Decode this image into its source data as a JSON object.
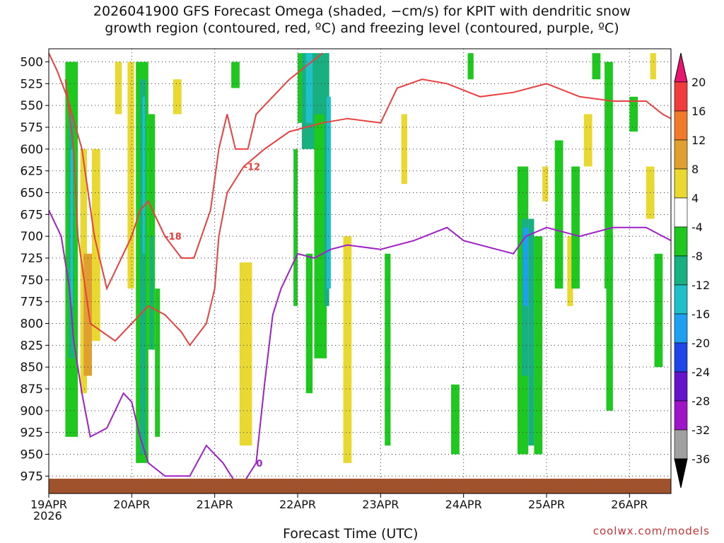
{
  "title_lines": [
    "2026041900 GFS Forecast Omega (shaded, −cm/s) for KPIT with dendritic snow",
    "growth region (contoured, red, ºC) and freezing level (contoured, purple, ºC)"
  ],
  "credit": "coolwx.com/models",
  "chart_data": {
    "type": "time-height",
    "title": "2026041900 GFS Forecast Omega (shaded, −cm/s) for KPIT with dendritic snow growth region (contoured, red, ºC) and freezing level (contoured, purple, ºC)",
    "xlabel": "Forecast Time (UTC)",
    "x_year_label": "2026",
    "x_ticks": [
      "19APR",
      "20APR",
      "21APR",
      "22APR",
      "23APR",
      "24APR",
      "25APR",
      "26APR"
    ],
    "xlim_days": [
      0,
      7.5
    ],
    "y_ticks": [
      500,
      525,
      550,
      575,
      600,
      625,
      650,
      675,
      700,
      725,
      750,
      775,
      800,
      825,
      850,
      875,
      900,
      925,
      950,
      975
    ],
    "ylim_hpa": [
      485,
      995
    ],
    "y_reversed": true,
    "grid": true,
    "colorbar": {
      "labels": [
        20,
        16,
        12,
        8,
        4,
        -4,
        -8,
        -12,
        -16,
        -20,
        -24,
        -28,
        -32,
        -36
      ],
      "colors": [
        "#e81470",
        "#f03c3c",
        "#f07a2a",
        "#e0a030",
        "#e8d830",
        "#ffffff",
        "#1ec81e",
        "#18b080",
        "#20c0c8",
        "#1ea0f0",
        "#1e46e6",
        "#6414c8",
        "#a014c8",
        "#a0a0a0",
        "#000000"
      ]
    },
    "omega_cells": [
      {
        "x": [
          0.2,
          0.35
        ],
        "y": [
          500,
          930
        ],
        "v": -8
      },
      {
        "x": [
          0.24,
          0.3
        ],
        "y": [
          560,
          840
        ],
        "v": -12
      },
      {
        "x": [
          0.26,
          0.29
        ],
        "y": [
          600,
          780
        ],
        "v": -16
      },
      {
        "x": [
          0.38,
          0.46
        ],
        "y": [
          600,
          880
        ],
        "v": 4
      },
      {
        "x": [
          0.42,
          0.52
        ],
        "y": [
          720,
          860
        ],
        "v": 8
      },
      {
        "x": [
          0.52,
          0.62
        ],
        "y": [
          600,
          820
        ],
        "v": 4
      },
      {
        "x": [
          1.05,
          1.2
        ],
        "y": [
          500,
          960
        ],
        "v": -8
      },
      {
        "x": [
          1.1,
          1.17
        ],
        "y": [
          520,
          950
        ],
        "v": -12
      },
      {
        "x": [
          1.13,
          1.16
        ],
        "y": [
          540,
          720
        ],
        "v": -16
      },
      {
        "x": [
          1.2,
          1.28
        ],
        "y": [
          560,
          830
        ],
        "v": -8
      },
      {
        "x": [
          1.22,
          1.26
        ],
        "y": [
          700,
          830
        ],
        "v": -12
      },
      {
        "x": [
          1.28,
          1.34
        ],
        "y": [
          760,
          930
        ],
        "v": -8
      },
      {
        "x": [
          0.95,
          1.03
        ],
        "y": [
          500,
          760
        ],
        "v": 4
      },
      {
        "x": [
          2.3,
          2.45
        ],
        "y": [
          730,
          940
        ],
        "v": 4
      },
      {
        "x": [
          1.5,
          1.6
        ],
        "y": [
          520,
          560
        ],
        "v": 4
      },
      {
        "x": [
          3.0,
          3.2
        ],
        "y": [
          490,
          570
        ],
        "v": -8
      },
      {
        "x": [
          3.05,
          3.38
        ],
        "y": [
          490,
          600
        ],
        "v": -12
      },
      {
        "x": [
          3.1,
          3.18
        ],
        "y": [
          490,
          570
        ],
        "v": -16
      },
      {
        "x": [
          3.2,
          3.35
        ],
        "y": [
          560,
          840
        ],
        "v": -8
      },
      {
        "x": [
          3.32,
          3.38
        ],
        "y": [
          490,
          780
        ],
        "v": -12
      },
      {
        "x": [
          3.35,
          3.4
        ],
        "y": [
          540,
          760
        ],
        "v": -16
      },
      {
        "x": [
          2.95,
          3.0
        ],
        "y": [
          600,
          780
        ],
        "v": -8
      },
      {
        "x": [
          3.1,
          3.18
        ],
        "y": [
          720,
          880
        ],
        "v": -8
      },
      {
        "x": [
          3.55,
          3.65
        ],
        "y": [
          700,
          960
        ],
        "v": 4
      },
      {
        "x": [
          4.05,
          4.12
        ],
        "y": [
          720,
          940
        ],
        "v": -8
      },
      {
        "x": [
          4.25,
          4.32
        ],
        "y": [
          560,
          640
        ],
        "v": 4
      },
      {
        "x": [
          4.85,
          4.95
        ],
        "y": [
          870,
          950
        ],
        "v": -8
      },
      {
        "x": [
          5.05,
          5.12
        ],
        "y": [
          490,
          520
        ],
        "v": -8
      },
      {
        "x": [
          5.65,
          5.78
        ],
        "y": [
          620,
          950
        ],
        "v": -8
      },
      {
        "x": [
          5.7,
          5.78
        ],
        "y": [
          680,
          860
        ],
        "v": -12
      },
      {
        "x": [
          5.72,
          5.78
        ],
        "y": [
          690,
          780
        ],
        "v": -20
      },
      {
        "x": [
          5.78,
          5.85
        ],
        "y": [
          680,
          940
        ],
        "v": -12
      },
      {
        "x": [
          5.85,
          5.95
        ],
        "y": [
          700,
          950
        ],
        "v": -8
      },
      {
        "x": [
          5.95,
          6.02
        ],
        "y": [
          620,
          660
        ],
        "v": 4
      },
      {
        "x": [
          6.1,
          6.2
        ],
        "y": [
          590,
          760
        ],
        "v": -8
      },
      {
        "x": [
          6.25,
          6.32
        ],
        "y": [
          700,
          780
        ],
        "v": 4
      },
      {
        "x": [
          6.3,
          6.4
        ],
        "y": [
          620,
          760
        ],
        "v": -8
      },
      {
        "x": [
          6.45,
          6.55
        ],
        "y": [
          560,
          620
        ],
        "v": 4
      },
      {
        "x": [
          6.7,
          6.8
        ],
        "y": [
          500,
          760
        ],
        "v": -8
      },
      {
        "x": [
          6.72,
          6.8
        ],
        "y": [
          700,
          900
        ],
        "v": -8
      },
      {
        "x": [
          7.0,
          7.1
        ],
        "y": [
          540,
          580
        ],
        "v": -8
      },
      {
        "x": [
          7.2,
          7.3
        ],
        "y": [
          620,
          680
        ],
        "v": 4
      },
      {
        "x": [
          7.25,
          7.32
        ],
        "y": [
          490,
          520
        ],
        "v": 4
      },
      {
        "x": [
          7.3,
          7.4
        ],
        "y": [
          720,
          850
        ],
        "v": -8
      },
      {
        "x": [
          0.8,
          0.88
        ],
        "y": [
          500,
          560
        ],
        "v": 4
      },
      {
        "x": [
          2.2,
          2.3
        ],
        "y": [
          500,
          530
        ],
        "v": -8
      },
      {
        "x": [
          6.55,
          6.65
        ],
        "y": [
          490,
          520
        ],
        "v": -8
      }
    ],
    "contours": [
      {
        "label": "-18",
        "color": "#e84040",
        "points": [
          [
            0,
            490
          ],
          [
            0.1,
            510
          ],
          [
            0.22,
            540
          ],
          [
            0.4,
            600
          ],
          [
            0.55,
            700
          ],
          [
            0.7,
            760
          ],
          [
            0.8,
            740
          ],
          [
            1.0,
            700
          ],
          [
            1.1,
            670
          ],
          [
            1.2,
            660
          ],
          [
            1.4,
            700
          ],
          [
            1.6,
            725
          ],
          [
            1.75,
            725
          ],
          [
            1.95,
            670
          ],
          [
            2.05,
            600
          ],
          [
            2.15,
            560
          ],
          [
            2.25,
            600
          ],
          [
            2.4,
            600
          ],
          [
            2.5,
            560
          ],
          [
            2.7,
            540
          ],
          [
            2.9,
            520
          ],
          [
            3.1,
            505
          ],
          [
            3.3,
            490
          ]
        ]
      },
      {
        "label": "-12",
        "color": "#e84040",
        "points": [
          [
            0.2,
            520
          ],
          [
            0.3,
            600
          ],
          [
            0.35,
            700
          ],
          [
            0.5,
            800
          ],
          [
            0.8,
            820
          ],
          [
            1.0,
            800
          ],
          [
            1.2,
            780
          ],
          [
            1.4,
            790
          ],
          [
            1.6,
            810
          ],
          [
            1.7,
            825
          ],
          [
            1.9,
            800
          ],
          [
            2.0,
            760
          ],
          [
            2.05,
            700
          ],
          [
            2.15,
            650
          ],
          [
            2.35,
            620
          ],
          [
            2.6,
            600
          ],
          [
            2.9,
            580
          ],
          [
            3.1,
            575
          ],
          [
            3.3,
            570
          ],
          [
            3.6,
            565
          ],
          [
            4.0,
            570
          ],
          [
            4.2,
            530
          ],
          [
            4.5,
            520
          ],
          [
            4.8,
            525
          ],
          [
            5.2,
            540
          ],
          [
            5.6,
            535
          ],
          [
            6.0,
            525
          ],
          [
            6.4,
            540
          ],
          [
            6.8,
            545
          ],
          [
            7.2,
            545
          ],
          [
            7.4,
            560
          ],
          [
            7.5,
            565
          ]
        ]
      },
      {
        "label": "0",
        "color": "#a020c8",
        "points": [
          [
            0,
            670
          ],
          [
            0.15,
            700
          ],
          [
            0.25,
            760
          ],
          [
            0.3,
            820
          ],
          [
            0.4,
            880
          ],
          [
            0.5,
            930
          ],
          [
            0.7,
            920
          ],
          [
            0.9,
            880
          ],
          [
            1.0,
            890
          ],
          [
            1.1,
            930
          ],
          [
            1.2,
            960
          ],
          [
            1.4,
            975
          ],
          [
            1.7,
            975
          ],
          [
            1.9,
            940
          ],
          [
            2.1,
            960
          ],
          [
            2.3,
            990
          ],
          [
            2.5,
            960
          ],
          [
            2.6,
            870
          ],
          [
            2.7,
            790
          ],
          [
            2.8,
            760
          ],
          [
            3.0,
            720
          ],
          [
            3.2,
            725
          ],
          [
            3.4,
            715
          ],
          [
            3.6,
            710
          ],
          [
            4.0,
            715
          ],
          [
            4.4,
            705
          ],
          [
            4.8,
            690
          ],
          [
            5.0,
            705
          ],
          [
            5.4,
            715
          ],
          [
            5.6,
            720
          ],
          [
            5.75,
            700
          ],
          [
            6.0,
            690
          ],
          [
            6.4,
            700
          ],
          [
            6.8,
            690
          ],
          [
            7.2,
            690
          ],
          [
            7.5,
            705
          ]
        ]
      }
    ],
    "terrain_top_hpa": 978
  }
}
